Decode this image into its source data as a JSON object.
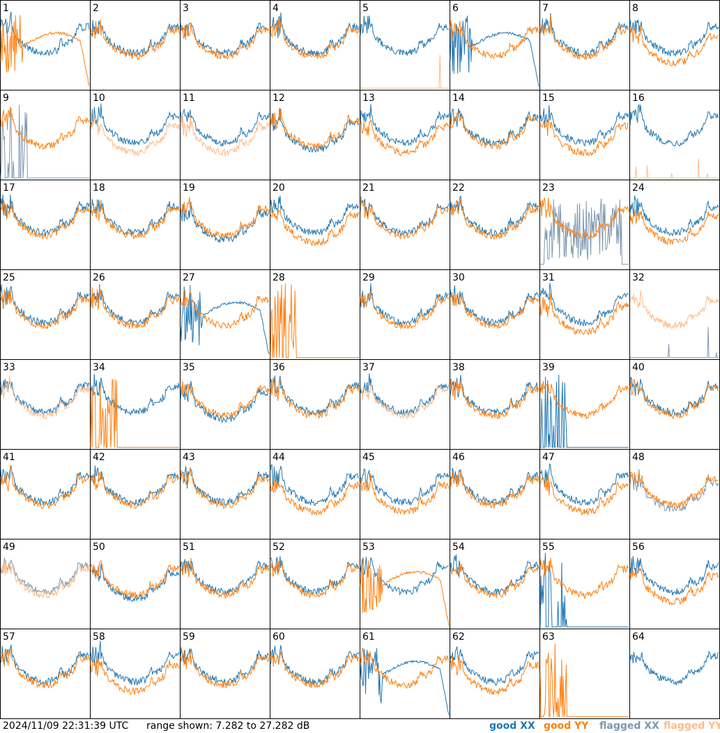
{
  "footer": {
    "timestamp": "2024/11/09 22:31:39 UTC",
    "range": "range shown: 7.282 to 27.282 dB"
  },
  "legend": {
    "good_xx": "good XX",
    "good_yy": "good YY",
    "flagged_xx": "flagged XX",
    "flagged_yy": "flagged YY"
  },
  "colors": {
    "good_xx": "#1f77b4",
    "good_yy": "#ff7f0e",
    "flagged_xx": "#7f97b0",
    "flagged_yy": "#ffbb88"
  },
  "chart_data": {
    "type": "line",
    "layout": "grid of 64 small-multiple panels (8 x 8)",
    "ylim": [
      7.282,
      27.282
    ],
    "yunit": "dB",
    "series_names": [
      "XX",
      "YY"
    ],
    "panels": [
      {
        "label": "1",
        "xx": "good",
        "yy": "good",
        "xx_shape": "normal",
        "yy_shape": "dip"
      },
      {
        "label": "2",
        "xx": "good",
        "yy": "good",
        "xx_shape": "normal",
        "yy_shape": "normal"
      },
      {
        "label": "3",
        "xx": "good",
        "yy": "good",
        "xx_shape": "normal",
        "yy_shape": "normal"
      },
      {
        "label": "4",
        "xx": "good",
        "yy": "good",
        "xx_shape": "normal",
        "yy_shape": "normal"
      },
      {
        "label": "5",
        "xx": "good",
        "yy": "flagged",
        "xx_shape": "normal",
        "yy_shape": "flat"
      },
      {
        "label": "6",
        "xx": "good",
        "yy": "good",
        "xx_shape": "dip",
        "yy_shape": "normal"
      },
      {
        "label": "7",
        "xx": "good",
        "yy": "good",
        "xx_shape": "normal",
        "yy_shape": "normal"
      },
      {
        "label": "8",
        "xx": "good",
        "yy": "good",
        "xx_shape": "normal",
        "yy_shape": "lower"
      },
      {
        "label": "9",
        "xx": "flagged",
        "yy": "good",
        "xx_shape": "spikes",
        "yy_shape": "normal"
      },
      {
        "label": "10",
        "xx": "good",
        "yy": "flagged",
        "xx_shape": "normal",
        "yy_shape": "lower"
      },
      {
        "label": "11",
        "xx": "good",
        "yy": "flagged",
        "xx_shape": "normal",
        "yy_shape": "lower"
      },
      {
        "label": "12",
        "xx": "good",
        "yy": "good",
        "xx_shape": "lower",
        "yy_shape": "normal"
      },
      {
        "label": "13",
        "xx": "good",
        "yy": "good",
        "xx_shape": "normal",
        "yy_shape": "lower"
      },
      {
        "label": "14",
        "xx": "good",
        "yy": "good",
        "xx_shape": "normal",
        "yy_shape": "normal"
      },
      {
        "label": "15",
        "xx": "good",
        "yy": "good",
        "xx_shape": "normal",
        "yy_shape": "lower"
      },
      {
        "label": "16",
        "xx": "good",
        "yy": "flagged",
        "xx_shape": "normal",
        "yy_shape": "flat"
      },
      {
        "label": "17",
        "xx": "good",
        "yy": "good",
        "xx_shape": "normal",
        "yy_shape": "normal"
      },
      {
        "label": "18",
        "xx": "good",
        "yy": "good",
        "xx_shape": "normal",
        "yy_shape": "normal"
      },
      {
        "label": "19",
        "xx": "good",
        "yy": "good",
        "xx_shape": "lower",
        "yy_shape": "normal"
      },
      {
        "label": "20",
        "xx": "good",
        "yy": "good",
        "xx_shape": "normal",
        "yy_shape": "lower"
      },
      {
        "label": "21",
        "xx": "good",
        "yy": "good",
        "xx_shape": "normal",
        "yy_shape": "normal"
      },
      {
        "label": "22",
        "xx": "good",
        "yy": "good",
        "xx_shape": "normal",
        "yy_shape": "normal"
      },
      {
        "label": "23",
        "xx": "flagged",
        "yy": "good",
        "xx_shape": "noisy",
        "yy_shape": "normal"
      },
      {
        "label": "24",
        "xx": "good",
        "yy": "good",
        "xx_shape": "normal",
        "yy_shape": "lower"
      },
      {
        "label": "25",
        "xx": "good",
        "yy": "good",
        "xx_shape": "normal",
        "yy_shape": "normal"
      },
      {
        "label": "26",
        "xx": "good",
        "yy": "good",
        "xx_shape": "normal",
        "yy_shape": "normal"
      },
      {
        "label": "27",
        "xx": "good",
        "yy": "good",
        "xx_shape": "dip",
        "yy_shape": "normal"
      },
      {
        "label": "28",
        "xx": "good",
        "yy": "good",
        "xx_shape": "none",
        "yy_shape": "spikes"
      },
      {
        "label": "29",
        "xx": "good",
        "yy": "good",
        "xx_shape": "normal",
        "yy_shape": "normal"
      },
      {
        "label": "30",
        "xx": "good",
        "yy": "good",
        "xx_shape": "normal",
        "yy_shape": "normal"
      },
      {
        "label": "31",
        "xx": "good",
        "yy": "good",
        "xx_shape": "normal",
        "yy_shape": "lower"
      },
      {
        "label": "32",
        "xx": "flagged",
        "yy": "flagged",
        "xx_shape": "flat",
        "yy_shape": "normal"
      },
      {
        "label": "33",
        "xx": "good",
        "yy": "flagged",
        "xx_shape": "normal",
        "yy_shape": "normal"
      },
      {
        "label": "34",
        "xx": "good",
        "yy": "good",
        "xx_shape": "normal",
        "yy_shape": "spikes"
      },
      {
        "label": "35",
        "xx": "good",
        "yy": "good",
        "xx_shape": "lower",
        "yy_shape": "normal"
      },
      {
        "label": "36",
        "xx": "good",
        "yy": "good",
        "xx_shape": "normal",
        "yy_shape": "normal"
      },
      {
        "label": "37",
        "xx": "good",
        "yy": "flagged",
        "xx_shape": "normal",
        "yy_shape": "normal"
      },
      {
        "label": "38",
        "xx": "good",
        "yy": "good",
        "xx_shape": "normal",
        "yy_shape": "normal"
      },
      {
        "label": "39",
        "xx": "good",
        "yy": "good",
        "xx_shape": "spikes",
        "yy_shape": "normal"
      },
      {
        "label": "40",
        "xx": "good",
        "yy": "good",
        "xx_shape": "normal",
        "yy_shape": "normal"
      },
      {
        "label": "41",
        "xx": "good",
        "yy": "good",
        "xx_shape": "normal",
        "yy_shape": "normal"
      },
      {
        "label": "42",
        "xx": "good",
        "yy": "good",
        "xx_shape": "normal",
        "yy_shape": "normal"
      },
      {
        "label": "43",
        "xx": "good",
        "yy": "good",
        "xx_shape": "normal",
        "yy_shape": "normal"
      },
      {
        "label": "44",
        "xx": "good",
        "yy": "good",
        "xx_shape": "normal",
        "yy_shape": "lower"
      },
      {
        "label": "45",
        "xx": "good",
        "yy": "good",
        "xx_shape": "normal",
        "yy_shape": "lower"
      },
      {
        "label": "46",
        "xx": "good",
        "yy": "good",
        "xx_shape": "normal",
        "yy_shape": "normal"
      },
      {
        "label": "47",
        "xx": "good",
        "yy": "good",
        "xx_shape": "normal",
        "yy_shape": "lower"
      },
      {
        "label": "48",
        "xx": "flagged",
        "yy": "good",
        "xx_shape": "lower",
        "yy_shape": "normal"
      },
      {
        "label": "49",
        "xx": "flagged",
        "yy": "flagged",
        "xx_shape": "normal",
        "yy_shape": "normal"
      },
      {
        "label": "50",
        "xx": "good",
        "yy": "good",
        "xx_shape": "lower",
        "yy_shape": "normal"
      },
      {
        "label": "51",
        "xx": "good",
        "yy": "good",
        "xx_shape": "normal",
        "yy_shape": "normal"
      },
      {
        "label": "52",
        "xx": "good",
        "yy": "good",
        "xx_shape": "normal",
        "yy_shape": "normal"
      },
      {
        "label": "53",
        "xx": "good",
        "yy": "good",
        "xx_shape": "normal",
        "yy_shape": "dip"
      },
      {
        "label": "54",
        "xx": "good",
        "yy": "good",
        "xx_shape": "normal",
        "yy_shape": "normal"
      },
      {
        "label": "55",
        "xx": "good",
        "yy": "good",
        "xx_shape": "spikes",
        "yy_shape": "normal"
      },
      {
        "label": "56",
        "xx": "good",
        "yy": "good",
        "xx_shape": "normal",
        "yy_shape": "lower"
      },
      {
        "label": "57",
        "xx": "good",
        "yy": "good",
        "xx_shape": "normal",
        "yy_shape": "normal"
      },
      {
        "label": "58",
        "xx": "good",
        "yy": "good",
        "xx_shape": "normal",
        "yy_shape": "lower"
      },
      {
        "label": "59",
        "xx": "good",
        "yy": "good",
        "xx_shape": "normal",
        "yy_shape": "normal"
      },
      {
        "label": "60",
        "xx": "good",
        "yy": "good",
        "xx_shape": "normal",
        "yy_shape": "normal"
      },
      {
        "label": "61",
        "xx": "good",
        "yy": "good",
        "xx_shape": "dip",
        "yy_shape": "normal"
      },
      {
        "label": "62",
        "xx": "good",
        "yy": "good",
        "xx_shape": "normal",
        "yy_shape": "lower"
      },
      {
        "label": "63",
        "xx": "good",
        "yy": "good",
        "xx_shape": "none",
        "yy_shape": "spikes"
      },
      {
        "label": "64",
        "xx": "good",
        "yy": "good",
        "xx_shape": "normal",
        "yy_shape": "none"
      }
    ]
  }
}
